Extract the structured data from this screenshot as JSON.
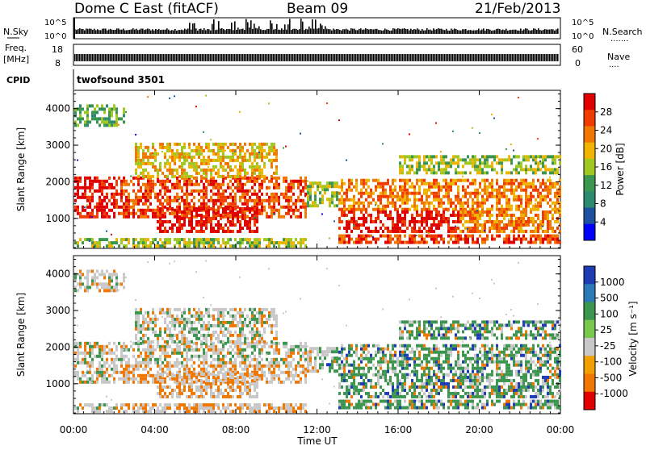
{
  "header": {
    "station": "Dome C East (fitACF)",
    "beam": "Beam 09",
    "date": "21/Feb/2013"
  },
  "strips": {
    "nsky_label": "N.Sky",
    "nsearch_label": "N.Search",
    "nsearch_dots": ".......",
    "freq_label": "Freq.",
    "freq_unit": "[MHz]",
    "nave_label": "Nave",
    "nave_dots": "....",
    "cpid_label": "CPID",
    "cpid_value": "twofsound 3501",
    "noise_ticks": [
      "10^5",
      "10^0"
    ],
    "noise_right_ticks": [
      "10^5",
      "10^0"
    ],
    "freq_ticks": [
      "18",
      "8"
    ],
    "nave_ticks": [
      "60",
      "0"
    ]
  },
  "chart_data": [
    {
      "type": "heatmap",
      "name": "power",
      "title": "",
      "xlabel": "",
      "ylabel": "Slant Range [km]",
      "xlim": [
        "00:00",
        "24:00"
      ],
      "ylim": [
        180,
        4500
      ],
      "y_ticks": [
        "1000",
        "2000",
        "3000",
        "4000"
      ],
      "colorbar": {
        "label": "Power [dB]",
        "ticks": [
          "28",
          "24",
          "20",
          "16",
          "12",
          "8",
          "4"
        ],
        "range": [
          0,
          30
        ],
        "colors": [
          "#e00000",
          "#f03c00",
          "#f07800",
          "#f0b400",
          "#a0c820",
          "#3c9650",
          "#2c8a70",
          "#1e50a0",
          "#0000ff"
        ]
      }
    },
    {
      "type": "heatmap",
      "name": "velocity",
      "title": "",
      "xlabel": "Time UT",
      "ylabel": "Slant Range [km]",
      "xlim": [
        "00:00",
        "24:00"
      ],
      "ylim": [
        180,
        4500
      ],
      "x_ticks": [
        "00:00",
        "04:00",
        "08:00",
        "12:00",
        "16:00",
        "20:00",
        "00:00"
      ],
      "y_ticks": [
        "1000",
        "2000",
        "3000",
        "4000"
      ],
      "colorbar": {
        "label": "Velocity [m s⁻¹]",
        "ticks": [
          "1000",
          "500",
          "100",
          "25",
          "-25",
          "-100",
          "-500",
          "-1000"
        ],
        "colors": [
          "#1e3cb4",
          "#2a7ab8",
          "#3c9650",
          "#78c850",
          "#c8c8c8",
          "#f0a000",
          "#f07800",
          "#e00000"
        ]
      }
    }
  ],
  "palette": {
    "power": [
      "#1010e0",
      "#1e50a0",
      "#2c8a70",
      "#3c9650",
      "#a0c820",
      "#f0b400",
      "#f07800",
      "#f03c00",
      "#e00000"
    ],
    "velocity_gray": "#c8c8c8",
    "velocity_green": "#3c9650",
    "velocity_orange": "#f07800",
    "velocity_blue": "#1e3cb4"
  }
}
